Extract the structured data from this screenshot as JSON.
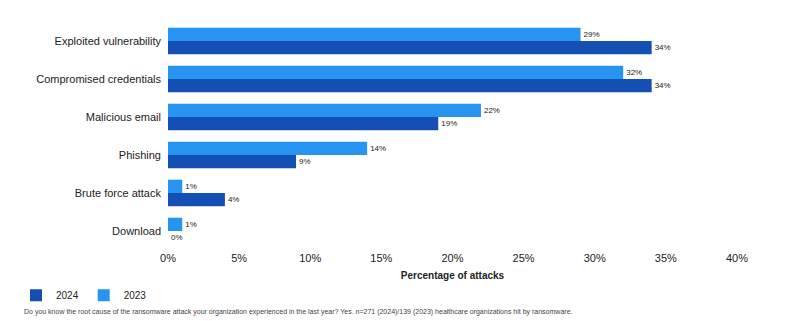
{
  "chart_data": {
    "type": "bar",
    "orientation": "horizontal",
    "categories": [
      "Exploited vulnerability",
      "Compromised credentials",
      "Malicious email",
      "Phishing",
      "Brute force attack",
      "Download"
    ],
    "series": [
      {
        "name": "2024",
        "color": "#1450b4",
        "values": [
          34,
          34,
          19,
          9,
          4,
          0
        ],
        "value_labels": [
          "34%",
          "34%",
          "19%",
          "9%",
          "4%",
          "0%"
        ]
      },
      {
        "name": "2023",
        "color": "#2794f2",
        "values": [
          29,
          32,
          22,
          14,
          1,
          1
        ],
        "value_labels": [
          "29%",
          "32%",
          "22%",
          "14%",
          "1%",
          "1%"
        ]
      }
    ],
    "xlabel": "Percentage of attacks",
    "xlim": [
      0,
      40
    ],
    "xticks": [
      {
        "value": 0,
        "label": "0%"
      },
      {
        "value": 5,
        "label": "5%"
      },
      {
        "value": 10,
        "label": "10%"
      },
      {
        "value": 15,
        "label": "15%"
      },
      {
        "value": 20,
        "label": "20%"
      },
      {
        "value": 25,
        "label": "25%"
      },
      {
        "value": 30,
        "label": "30%"
      },
      {
        "value": 35,
        "label": "35%"
      },
      {
        "value": 40,
        "label": "40%"
      }
    ],
    "grid": false,
    "legend": "bottom left",
    "data_labels": true,
    "caption": "Do you know the root cause of the ransomware attack your organization experienced in the last year? Yes. n=271 (2024)/139 (2023) healthcare organizations hit by ransomware."
  }
}
